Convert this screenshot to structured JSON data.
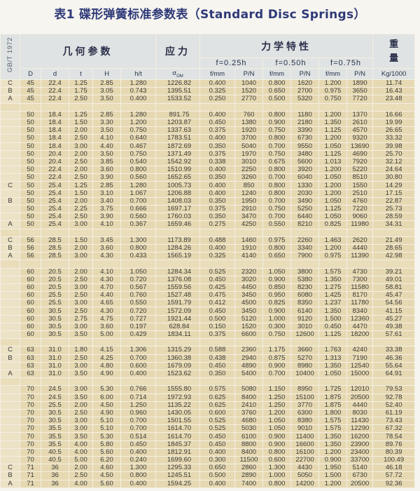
{
  "title": "表1 碟形弹簧标准参数表（Standard Disc Springs）",
  "header": {
    "standard": "GB/T 1972",
    "geometry": "几何参数",
    "stress": "应力",
    "mechanics": "力学特性",
    "weight_1": "重",
    "weight_2": "量",
    "f1": "f=0.25h",
    "f2": "f=0.50h",
    "f3": "f=0.75h",
    "cols": [
      "D",
      "d",
      "t",
      "H",
      "h/t",
      "σ",
      "OM",
      "f/mm",
      "P/N",
      "f/mm",
      "P/N",
      "f/mm",
      "P/N",
      "Kg/1000"
    ]
  },
  "table": {
    "groups": [
      {
        "rows": [
          [
            "C",
            "45",
            "22.4",
            "1.25",
            "2.85",
            "1.280",
            "1226.82",
            "0.400",
            "1040",
            "0.800",
            "1620",
            "1.200",
            "1890",
            "11.74"
          ],
          [
            "B",
            "45",
            "22.4",
            "1.75",
            "3.05",
            "0.743",
            "1395.51",
            "0.325",
            "1520",
            "0.650",
            "2700",
            "0.975",
            "3650",
            "16.43"
          ],
          [
            "A",
            "45",
            "22.4",
            "2.50",
            "3.50",
            "0.400",
            "1533.52",
            "0.250",
            "2770",
            "0.500",
            "5320",
            "0.750",
            "7720",
            "23.48"
          ]
        ]
      },
      {
        "rows": [
          [
            "",
            "50",
            "18.4",
            "1.25",
            "2.85",
            "1.280",
            "891.75",
            "0.400",
            "760",
            "0.800",
            "1180",
            "1.200",
            "1370",
            "16.66"
          ],
          [
            "",
            "50",
            "18.4",
            "1.50",
            "3.30",
            "1.200",
            "1203.87",
            "0.450",
            "1380",
            "0.900",
            "2180",
            "1.350",
            "2610",
            "19.99"
          ],
          [
            "",
            "50",
            "18.4",
            "2.00",
            "3.50",
            "0.750",
            "1337.63",
            "0.375",
            "1920",
            "0.750",
            "3390",
            "1.125",
            "4570",
            "26.65"
          ],
          [
            "",
            "50",
            "18.4",
            "2.50",
            "4.10",
            "0.640",
            "1783.51",
            "0.400",
            "3700",
            "0.800",
            "6730",
            "1.200",
            "9320",
            "33.32"
          ],
          [
            "",
            "50",
            "18.4",
            "3.00",
            "4.40",
            "0.467",
            "1872.69",
            "0.350",
            "5040",
            "0.700",
            "9550",
            "1.050",
            "13690",
            "39.98"
          ],
          [
            "",
            "50",
            "20.4",
            "2.00",
            "3.50",
            "0.750",
            "1371.49",
            "0.375",
            "1970",
            "0.750",
            "3480",
            "1.125",
            "4690",
            "25.70"
          ],
          [
            "",
            "50",
            "20.4",
            "2.50",
            "3.85",
            "0.540",
            "1542.92",
            "0.338",
            "3010",
            "0.675",
            "5600",
            "1.013",
            "7920",
            "32.12"
          ],
          [
            "",
            "50",
            "22.4",
            "2.00",
            "3.60",
            "0.800",
            "1510.99",
            "0.400",
            "2250",
            "0.800",
            "3920",
            "1.200",
            "5220",
            "24.64"
          ],
          [
            "",
            "50",
            "22.4",
            "2.50",
            "3.90",
            "0.560",
            "1652.65",
            "0.350",
            "3260",
            "0.700",
            "6040",
            "1.050",
            "8510",
            "30.80"
          ],
          [
            "C",
            "50",
            "25.4",
            "1.25",
            "2.85",
            "1.280",
            "1005.73",
            "0.400",
            "850",
            "0.800",
            "1330",
            "1.200",
            "1550",
            "14.29"
          ],
          [
            "",
            "50",
            "25.4",
            "1.50",
            "3.10",
            "1.067",
            "1206.88",
            "0.400",
            "1240",
            "0.800",
            "2030",
            "1.200",
            "2510",
            "17.15"
          ],
          [
            "B",
            "50",
            "25.4",
            "2.00",
            "3.40",
            "0.700",
            "1408.03",
            "0.350",
            "1950",
            "0.700",
            "3490",
            "1.050",
            "4760",
            "22.87"
          ],
          [
            "",
            "50",
            "25.4",
            "2.25",
            "3.75",
            "0.666",
            "1697.17",
            "0.375",
            "2910",
            "0.750",
            "5250",
            "1.125",
            "7220",
            "25.73"
          ],
          [
            "",
            "50",
            "25.4",
            "2.50",
            "3.90",
            "0.560",
            "1760.03",
            "0.350",
            "3470",
            "0.700",
            "6440",
            "1.050",
            "9060",
            "28.59"
          ],
          [
            "A",
            "50",
            "25.4",
            "3.00",
            "4.10",
            "0.367",
            "1659.46",
            "0.275",
            "4250",
            "0.550",
            "8210",
            "0.825",
            "11980",
            "34.31"
          ]
        ]
      },
      {
        "rows": [
          [
            "C",
            "56",
            "28.5",
            "1.50",
            "3.45",
            "1.300",
            "1173.89",
            "0.488",
            "1460",
            "0.975",
            "2260",
            "1.463",
            "2620",
            "21.49"
          ],
          [
            "B",
            "56",
            "28.5",
            "2.00",
            "3.60",
            "0.800",
            "1284.26",
            "0.400",
            "1910",
            "0.800",
            "3340",
            "1.200",
            "4440",
            "28.65"
          ],
          [
            "A",
            "56",
            "28.5",
            "3.00",
            "4.30",
            "0.433",
            "1565.19",
            "0.325",
            "4140",
            "0.650",
            "7900",
            "0.975",
            "11390",
            "42.98"
          ]
        ]
      },
      {
        "rows": [
          [
            "",
            "60",
            "20.5",
            "2.00",
            "4.10",
            "1.050",
            "1284.34",
            "0.525",
            "2320",
            "1.050",
            "3800",
            "1.575",
            "4730",
            "39.21"
          ],
          [
            "",
            "60",
            "20.5",
            "2.50",
            "4.30",
            "0.720",
            "1376.08",
            "0.450",
            "3020",
            "0.900",
            "5380",
            "1.350",
            "7300",
            "49.01"
          ],
          [
            "",
            "60",
            "20.5",
            "3.00",
            "4.70",
            "0.567",
            "1559.56",
            "0.425",
            "4450",
            "0.850",
            "8230",
            "1.275",
            "11580",
            "58.81"
          ],
          [
            "",
            "60",
            "25.5",
            "2.50",
            "4.40",
            "0.760",
            "1527.48",
            "0.475",
            "3450",
            "0.950",
            "6080",
            "1.425",
            "8170",
            "45.47"
          ],
          [
            "",
            "60",
            "25.5",
            "3.00",
            "4.65",
            "0.550",
            "1591.79",
            "0.412",
            "4500",
            "0.825",
            "8350",
            "1.237",
            "11780",
            "54.56"
          ],
          [
            "",
            "60",
            "30.5",
            "2.50",
            "4.30",
            "0.720",
            "1572.09",
            "0.450",
            "3450",
            "0.900",
            "6140",
            "1.350",
            "8340",
            "41.15"
          ],
          [
            "",
            "60",
            "30.5",
            "2.75",
            "4.75",
            "0.727",
            "1921.44",
            "0.500",
            "5120",
            "1.000",
            "9120",
            "1.500",
            "12360",
            "45.27"
          ],
          [
            "",
            "60",
            "30.5",
            "3.00",
            "3.60",
            "0.197",
            "628.84",
            "0.150",
            "1520",
            "0.300",
            "3010",
            "0.450",
            "4470",
            "49.38"
          ],
          [
            "",
            "60",
            "30.5",
            "3.50",
            "5.00",
            "0.429",
            "1834.11",
            "0.375",
            "6600",
            "0.750",
            "12600",
            "1.125",
            "18200",
            "57.61"
          ]
        ]
      },
      {
        "rows": [
          [
            "C",
            "63",
            "31.0",
            "1.80",
            "4.15",
            "1.306",
            "1315.29",
            "0.588",
            "2360",
            "1.175",
            "3660",
            "1.763",
            "4240",
            "33.38"
          ],
          [
            "B",
            "63",
            "31.0",
            "2.50",
            "4.25",
            "0.700",
            "1360.38",
            "0.438",
            "2940",
            "0.875",
            "5270",
            "1.313",
            "7190",
            "46.36"
          ],
          [
            "",
            "63",
            "31.0",
            "3.00",
            "4.80",
            "0.600",
            "1679.09",
            "0.450",
            "4890",
            "0.900",
            "8980",
            "1.350",
            "12540",
            "55.64"
          ],
          [
            "A",
            "63",
            "31.0",
            "3.50",
            "4.90",
            "0.400",
            "1523.62",
            "0.350",
            "5400",
            "0.700",
            "10400",
            "1.050",
            "15000",
            "64.91"
          ]
        ]
      },
      {
        "rows": [
          [
            "",
            "70",
            "24.5",
            "3.00",
            "5.30",
            "0.766",
            "1555.80",
            "0.575",
            "5080",
            "1.150",
            "8950",
            "1.725",
            "12010",
            "79.53"
          ],
          [
            "",
            "70",
            "24.5",
            "3.50",
            "6.00",
            "0.714",
            "1972.93",
            "0.625",
            "8400",
            "1.250",
            "15100",
            "1.875",
            "20500",
            "92.78"
          ],
          [
            "",
            "70",
            "25.5",
            "2.00",
            "4.50",
            "1.250",
            "1135.22",
            "0.625",
            "2410",
            "1.250",
            "3770",
            "1.875",
            "4440",
            "52.40"
          ],
          [
            "",
            "70",
            "30.5",
            "2.50",
            "4.90",
            "0.960",
            "1430.05",
            "0.600",
            "3760",
            "1.200",
            "6300",
            "1.800",
            "8030",
            "61.19"
          ],
          [
            "",
            "70",
            "30.5",
            "3.00",
            "5.10",
            "0.700",
            "1501.55",
            "0.525",
            "4680",
            "1.050",
            "8380",
            "1.575",
            "11430",
            "73.43"
          ],
          [
            "",
            "70",
            "35.5",
            "3.00",
            "5.10",
            "0.700",
            "1614.70",
            "0.525",
            "5030",
            "1.050",
            "9010",
            "1.575",
            "12290",
            "67.32"
          ],
          [
            "",
            "70",
            "35.5",
            "3.50",
            "5.30",
            "0.514",
            "1614.70",
            "0.450",
            "6100",
            "0.900",
            "11400",
            "1.350",
            "16200",
            "78.54"
          ],
          [
            "",
            "70",
            "35.5",
            "4.00",
            "5.80",
            "0.450",
            "1845.37",
            "0.450",
            "8800",
            "0.900",
            "16600",
            "1.350",
            "23900",
            "89.76"
          ],
          [
            "",
            "70",
            "40.5",
            "4.00",
            "5.60",
            "0.400",
            "1812.91",
            "0.400",
            "8400",
            "0.800",
            "16100",
            "1.200",
            "23400",
            "80.39"
          ],
          [
            "",
            "70",
            "40.5",
            "5.00",
            "6.20",
            "0.240",
            "1699.60",
            "0.300",
            "11500",
            "0.600",
            "22700",
            "0.900",
            "33700",
            "100.49"
          ],
          [
            "C",
            "71",
            "36",
            "2.00",
            "4.60",
            "1.300",
            "1295.33",
            "0.650",
            "2860",
            "1.300",
            "4430",
            "1.950",
            "5140",
            "46.18"
          ],
          [
            "B",
            "71",
            "36",
            "2.50",
            "4.50",
            "0.800",
            "1245.51",
            "0.500",
            "2890",
            "1.000",
            "5050",
            "1.500",
            "6730",
            "57.72"
          ],
          [
            "A",
            "71",
            "36",
            "4.00",
            "5.60",
            "0.400",
            "1594.25",
            "0.400",
            "7400",
            "0.800",
            "14200",
            "1.200",
            "20500",
            "92.36"
          ]
        ]
      }
    ]
  },
  "colors": {
    "title": "#2f3a78",
    "header_bg": "#dfe3e3",
    "row_bg": "#e6d9b2"
  }
}
